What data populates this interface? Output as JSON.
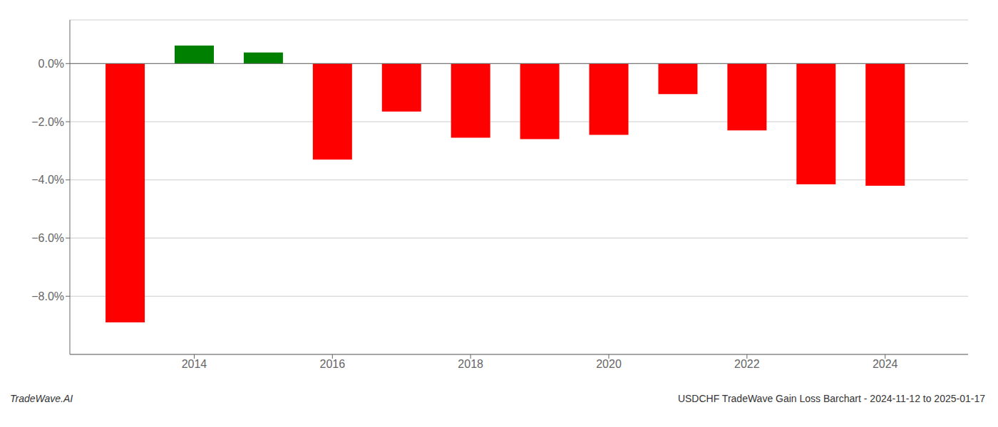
{
  "chart_data": {
    "type": "bar",
    "x": [
      2013,
      2014,
      2015,
      2016,
      2017,
      2018,
      2019,
      2020,
      2021,
      2022,
      2023,
      2024
    ],
    "values": [
      -8.9,
      0.62,
      0.38,
      -3.3,
      -1.65,
      -2.55,
      -2.6,
      -2.45,
      -1.05,
      -2.3,
      -4.15,
      -4.2
    ],
    "colors": [
      "#ff0000",
      "#008000",
      "#008000",
      "#ff0000",
      "#ff0000",
      "#ff0000",
      "#ff0000",
      "#ff0000",
      "#ff0000",
      "#ff0000",
      "#ff0000",
      "#ff0000"
    ],
    "xlim": [
      2012.2,
      2025.2
    ],
    "xticks": [
      2014,
      2016,
      2018,
      2020,
      2022,
      2024
    ],
    "ylim": [
      -10.0,
      1.5
    ],
    "yticks": [
      {
        "value": 0.0,
        "label": "0.0%"
      },
      {
        "value": -2.0,
        "label": "−2.0%"
      },
      {
        "value": -4.0,
        "label": "−4.0%"
      },
      {
        "value": -6.0,
        "label": "−6.0%"
      },
      {
        "value": -8.0,
        "label": "−8.0%"
      }
    ],
    "grid": true,
    "annotations": [
      "TradeWave.AI",
      "USDCHF TradeWave Gain Loss Barchart - 2024-11-12 to 2025-01-17"
    ]
  }
}
